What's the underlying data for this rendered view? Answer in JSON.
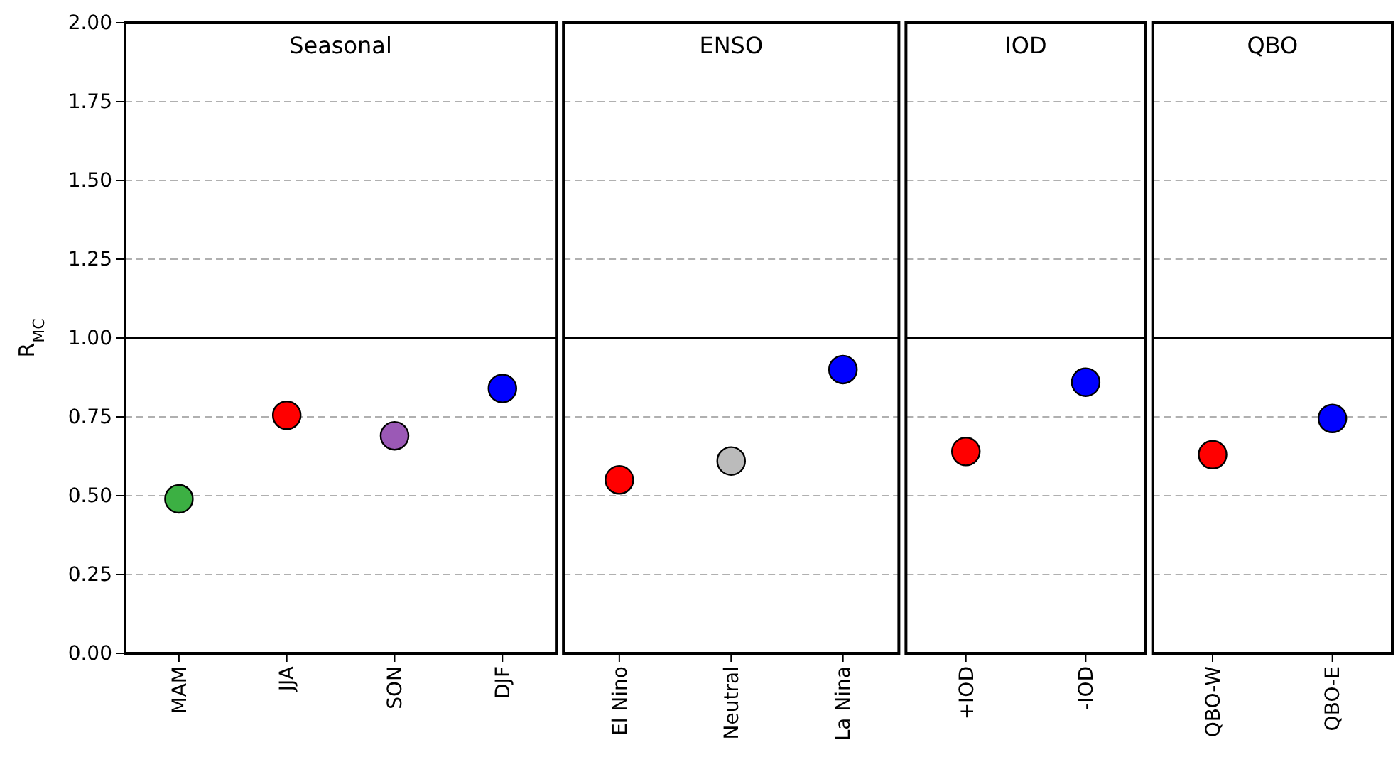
{
  "chart_data": [
    {
      "type": "scatter",
      "title": "Seasonal",
      "ylabel": "R$_{MC}$",
      "categories": [
        "MAM",
        "JJA",
        "SON",
        "DJF"
      ],
      "ylim": [
        0,
        2
      ],
      "yticks": [
        {
          "value": 0,
          "label": "0.00"
        },
        {
          "value": 0.25,
          "label": "0.25"
        },
        {
          "value": 0.5,
          "label": "0.50"
        },
        {
          "value": 0.75,
          "label": "0.75"
        },
        {
          "value": 1,
          "label": "1.00"
        },
        {
          "value": 1.25,
          "label": "1.25"
        },
        {
          "value": 1.5,
          "label": "1.50"
        },
        {
          "value": 1.75,
          "label": "1.75"
        },
        {
          "value": 2,
          "label": "2.00"
        }
      ],
      "grid": "y",
      "marker": "circle",
      "series": [
        {
          "values": [
            0.49,
            0.755,
            0.69,
            0.84
          ],
          "colors": [
            "#3cb043",
            "#ff0000",
            "#9b59b6",
            "#0000ff"
          ]
        }
      ],
      "ref_lines": [
        {
          "axis": "y",
          "value": 1,
          "color": "#000000"
        }
      ]
    },
    {
      "type": "scatter",
      "title": "ENSO",
      "categories": [
        "El Nino",
        "Neutral",
        "La Nina"
      ],
      "ylim": [
        0,
        2
      ],
      "yticks": [
        0,
        0.25,
        0.5,
        0.75,
        1,
        1.25,
        1.5,
        1.75,
        2
      ],
      "tick_labels": "x",
      "grid": "y",
      "marker": "circle",
      "series": [
        {
          "values": [
            0.55,
            0.61,
            0.9
          ],
          "colors": [
            "#ff0000",
            "#bbbbbb",
            "#0000ff"
          ]
        }
      ],
      "ref_lines": [
        {
          "axis": "y",
          "value": 1,
          "color": "#000000"
        }
      ]
    },
    {
      "type": "scatter",
      "title": "IOD",
      "categories": [
        "+IOD",
        "-IOD"
      ],
      "ylim": [
        0,
        2
      ],
      "yticks": [
        0,
        0.25,
        0.5,
        0.75,
        1,
        1.25,
        1.5,
        1.75,
        2
      ],
      "tick_labels": "x",
      "grid": "y",
      "marker": "circle",
      "series": [
        {
          "values": [
            0.64,
            0.86
          ],
          "colors": [
            "#ff0000",
            "#0000ff"
          ]
        }
      ],
      "ref_lines": [
        {
          "axis": "y",
          "value": 1,
          "color": "#000000"
        }
      ]
    },
    {
      "type": "scatter",
      "title": "QBO",
      "categories": [
        "QBO-W",
        "QBO-E"
      ],
      "ylim": [
        0,
        2
      ],
      "yticks": [
        0,
        0.25,
        0.5,
        0.75,
        1,
        1.25,
        1.5,
        1.75,
        2
      ],
      "tick_labels": "x",
      "grid": "y",
      "marker": "circle",
      "series": [
        {
          "values": [
            0.63,
            0.745
          ],
          "colors": [
            "#ff0000",
            "#0000ff"
          ]
        }
      ],
      "ref_lines": [
        {
          "axis": "y",
          "value": 1,
          "color": "#000000"
        }
      ]
    }
  ]
}
